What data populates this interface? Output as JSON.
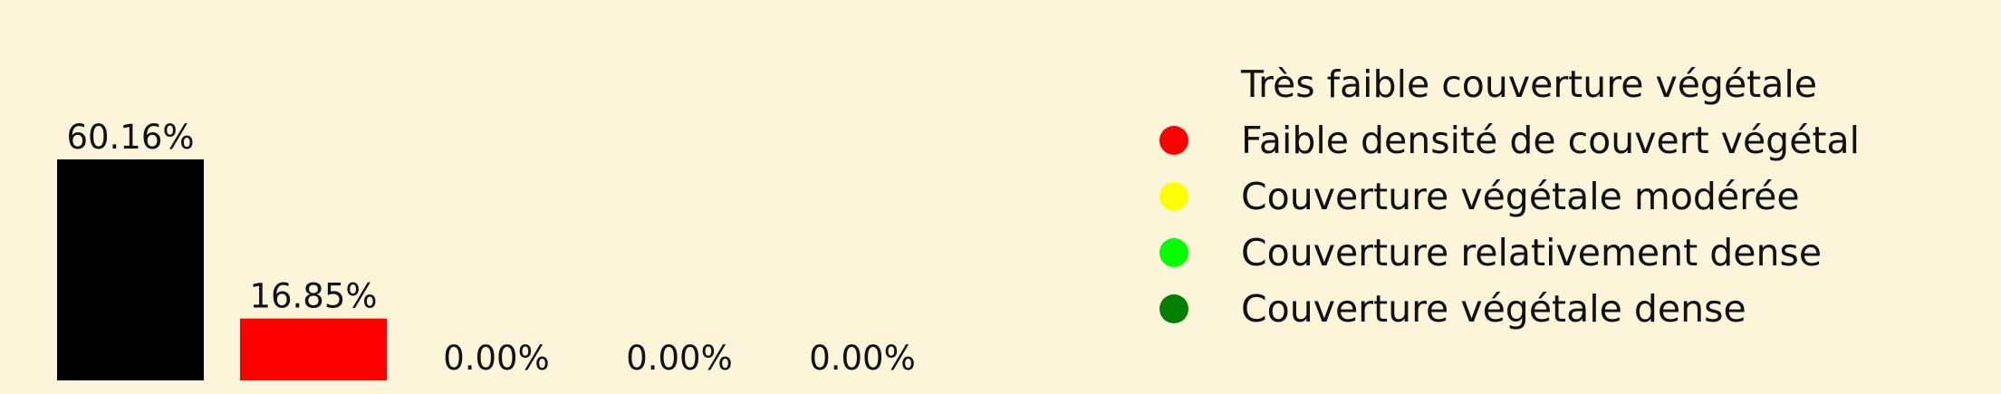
{
  "chart_data": {
    "type": "bar",
    "title": "",
    "xlabel": "",
    "ylabel": "",
    "ylim": [
      0,
      70
    ],
    "categories": [
      "Très faible couverture végétale",
      "Faible densité de couvert végétal",
      "Couverture végétale modérée",
      "Couverture relativement dense",
      "Couverture végétale dense"
    ],
    "values": [
      60.16,
      16.85,
      0.0,
      0.0,
      0.0
    ],
    "data_labels": [
      "60.16%",
      "16.85%",
      "0.00%",
      "0.00%",
      "0.00%"
    ],
    "colors": [
      "#000000",
      "#ff0000",
      "#ffff00",
      "#00ff00",
      "#008000"
    ],
    "legend": {
      "position": "right",
      "entries": [
        {
          "label": "Très faible couverture végétale",
          "color": "#000000"
        },
        {
          "label": "Faible densité de couvert végétal",
          "color": "#ff0000"
        },
        {
          "label": "Couverture végétale modérée",
          "color": "#ffff00"
        },
        {
          "label": "Couverture relativement dense",
          "color": "#00ff00"
        },
        {
          "label": "Couverture végétale dense",
          "color": "#008000"
        }
      ]
    },
    "background_color": "#fdf5d9"
  }
}
